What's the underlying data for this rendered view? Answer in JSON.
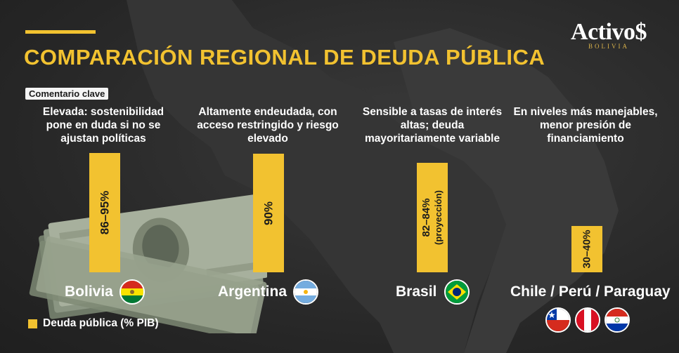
{
  "header": {
    "title": "COMPARACIÓN REGIONAL DE DEUDA PÚBLICA",
    "logo_main": "Activo$",
    "logo_sub": "BOLIVIA"
  },
  "key_comment_label": "Comentario clave",
  "legend": {
    "label": "Deuda pública (% PIB)"
  },
  "colors": {
    "accent": "#f2c230",
    "background": "#2b2b2b",
    "text": "#ffffff"
  },
  "chart_data": {
    "type": "bar",
    "categories": [
      "Bolivia",
      "Argentina",
      "Brasil",
      "Chile / Perú / Paraguay"
    ],
    "values": [
      90.5,
      90,
      83,
      35
    ],
    "value_labels": [
      "86–95%",
      "90%",
      "82–84%",
      "30–40%"
    ],
    "value_sublabels": [
      "",
      "",
      "(proyección)",
      ""
    ],
    "ranges": [
      [
        86,
        95
      ],
      [
        90,
        90
      ],
      [
        82,
        84
      ],
      [
        30,
        40
      ]
    ],
    "comments": [
      "Elevada: sostenibilidad pone en duda si no se ajustan políticas",
      "Altamente endeudada, con acceso restringido y riesgo elevado",
      "Sensible a tasas de interés altas; deuda mayoritariamente variable",
      "En niveles más manejables, menor presión de financiamiento"
    ],
    "flags": [
      [
        "bolivia-flag"
      ],
      [
        "argentina-flag"
      ],
      [
        "brazil-flag"
      ],
      [
        "chile-flag",
        "peru-flag",
        "paraguay-flag"
      ]
    ],
    "ylim": [
      0,
      100
    ],
    "grid": false,
    "legend_position": "bottom-left"
  }
}
